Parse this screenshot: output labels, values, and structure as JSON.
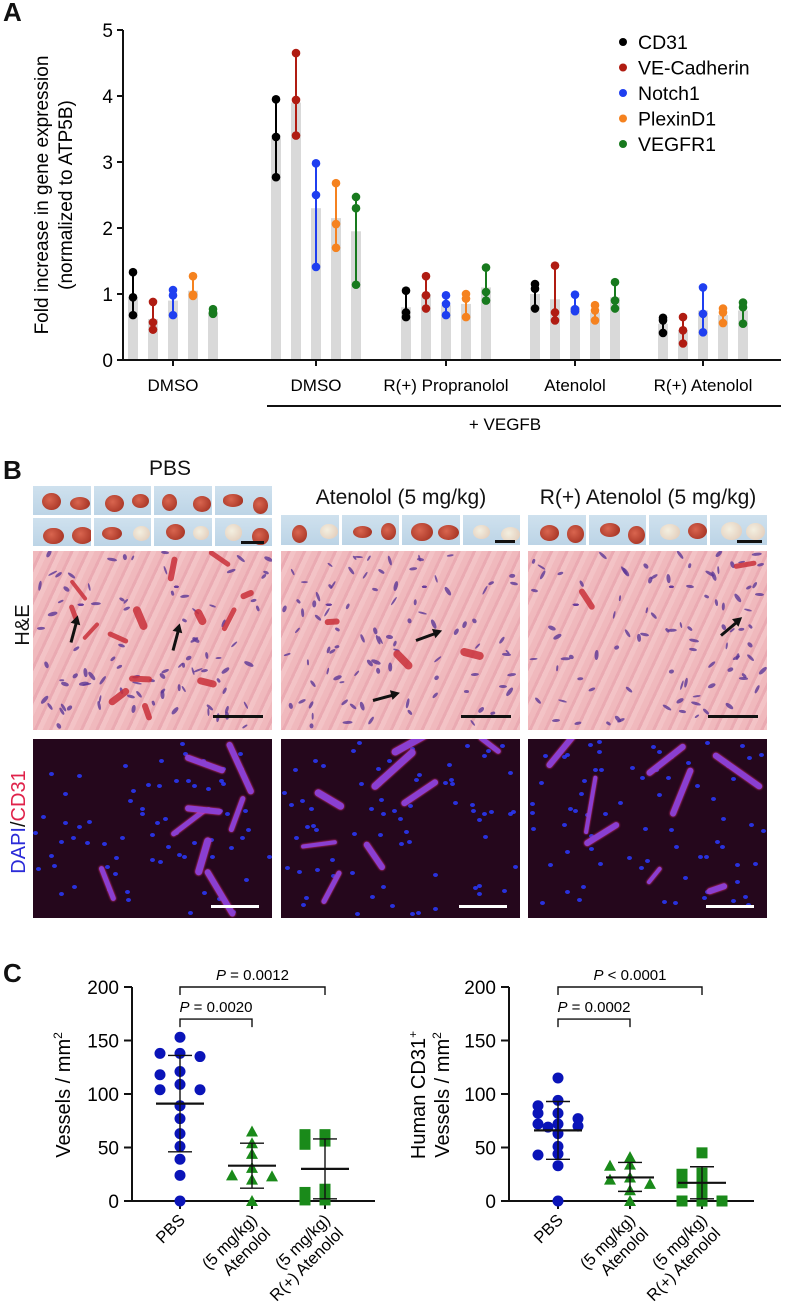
{
  "panels": {
    "A": {
      "letter": "A"
    },
    "B": {
      "letter": "B"
    },
    "C": {
      "letter": "C"
    }
  },
  "panel_b": {
    "groups": [
      {
        "title": "PBS"
      },
      {
        "title": "Atenolol (5 mg/kg)"
      },
      {
        "title": "R(+) Atenolol (5 mg/kg)"
      }
    ],
    "row_labels": {
      "he": "H&E",
      "if_dapi": "DAPI",
      "if_sep": "/",
      "if_cd31": "CD31"
    },
    "colors": {
      "dapi": "#2b2bd8",
      "cd31": "#e0224a"
    }
  },
  "chart_data": [
    {
      "id": "A",
      "type": "bar",
      "title": "",
      "ylabel": "Fold increase in gene expression (normalized to ATP5B)",
      "ylabel_line1": "Fold increase in gene expression",
      "ylabel_line2": "(normalized to ATP5B)",
      "xlabel": "",
      "ylim": [
        0,
        5
      ],
      "yticks": [
        0,
        1,
        2,
        3,
        4,
        5
      ],
      "grid": false,
      "legend_position": "upper right",
      "categories": [
        "DMSO",
        "DMSO",
        "R(+) Propranolol",
        "Atenolol",
        "R(+) Atenolol"
      ],
      "group_annotation": {
        "label": "+ VEGFB",
        "spans_categories": [
          1,
          2,
          3,
          4
        ]
      },
      "bar_color": "#d9d9d9",
      "series": [
        {
          "name": "CD31",
          "color": "#000000",
          "values": [
            0.95,
            3.36,
            0.8,
            1.0,
            0.55
          ],
          "points": [
            [
              1.33,
              0.95,
              0.68
            ],
            [
              3.95,
              3.38,
              2.77
            ],
            [
              1.05,
              0.72,
              0.65
            ],
            [
              1.15,
              1.08,
              0.78
            ],
            [
              0.64,
              0.6,
              0.41
            ]
          ]
        },
        {
          "name": "VE-Cadherin",
          "color": "#b01c12",
          "values": [
            0.62,
            3.9,
            1.0,
            0.92,
            0.45
          ],
          "points": [
            [
              0.88,
              0.57,
              0.46
            ],
            [
              4.65,
              3.94,
              3.4
            ],
            [
              1.27,
              0.98,
              0.78
            ],
            [
              1.43,
              0.72,
              0.6
            ],
            [
              0.65,
              0.45,
              0.25
            ]
          ]
        },
        {
          "name": "Notch1",
          "color": "#1f3ff0",
          "values": [
            0.9,
            2.3,
            0.83,
            0.8,
            0.75
          ],
          "points": [
            [
              1.06,
              0.98,
              0.68
            ],
            [
              2.98,
              2.5,
              1.41
            ],
            [
              0.98,
              0.85,
              0.68
            ],
            [
              0.99,
              0.77,
              0.74
            ],
            [
              1.1,
              0.7,
              0.42
            ]
          ]
        },
        {
          "name": "PlexinD1",
          "color": "#f5821f",
          "values": [
            1.05,
            2.15,
            0.85,
            0.72,
            0.68
          ],
          "points": [
            [
              1.27,
              0.99,
              0.97
            ],
            [
              2.68,
              2.06,
              1.7
            ],
            [
              1.0,
              0.93,
              0.65
            ],
            [
              0.83,
              0.75,
              0.6
            ],
            [
              0.78,
              0.72,
              0.56
            ]
          ]
        },
        {
          "name": "VEGFR1",
          "color": "#187a1e",
          "values": [
            0.72,
            1.95,
            1.1,
            0.95,
            0.75
          ],
          "points": [
            [
              0.77,
              0.72,
              0.7
            ],
            [
              2.47,
              2.3,
              1.14
            ],
            [
              1.4,
              1.03,
              0.9
            ],
            [
              1.18,
              0.9,
              0.78
            ],
            [
              0.87,
              0.8,
              0.55
            ]
          ]
        }
      ]
    },
    {
      "id": "C-left",
      "type": "scatter",
      "title": "",
      "ylabel": "Vessels / mm²",
      "ylabel_text": "Vessels / mm",
      "ylabel_sup": "2",
      "ylim": [
        0,
        200
      ],
      "yticks": [
        0,
        50,
        100,
        150,
        200
      ],
      "categories": [
        "PBS",
        "Atenolol (5 mg/kg)",
        "R(+) Atenolol (5 mg/kg)"
      ],
      "category_lines": [
        [
          "PBS"
        ],
        [
          "Atenolol",
          "(5 mg/kg)"
        ],
        [
          "R(+) Atenolol",
          "(5 mg/kg)"
        ]
      ],
      "series": [
        {
          "name": "PBS",
          "marker": "circle",
          "color": "#0a14b8",
          "points": [
            153,
            138,
            138,
            135,
            121,
            118,
            109,
            104,
            104,
            89,
            77,
            63,
            51,
            39,
            24,
            0
          ],
          "mean": 91,
          "sd_low": 46,
          "sd_high": 136
        },
        {
          "name": "Atenolol (5 mg/kg)",
          "marker": "triangle",
          "color": "#1a8a1a",
          "points": [
            65,
            54,
            44,
            31,
            24,
            23,
            20,
            0
          ],
          "mean": 33,
          "sd_low": 12,
          "sd_high": 54
        },
        {
          "name": "R(+) Atenolol (5 mg/kg)",
          "marker": "square",
          "color": "#1a8a1a",
          "points": [
            62,
            62,
            56,
            53,
            11,
            8,
            1,
            1
          ],
          "mean": 30,
          "sd_low": 2,
          "sd_high": 58
        }
      ],
      "annotations": [
        {
          "text_italic": "P",
          "text": " = 0.0020",
          "from": 0,
          "to": 1,
          "y": 170
        },
        {
          "text_italic": "P",
          "text": " = 0.0012",
          "from": 0,
          "to": 2,
          "y": 200
        }
      ]
    },
    {
      "id": "C-right",
      "type": "scatter",
      "title": "",
      "ylabel": "Human CD31+ Vessels / mm²",
      "ylabel_line1": "Human CD31",
      "ylabel_line1_sup": "+",
      "ylabel_line2": "Vessels / mm",
      "ylabel_line2_sup": "2",
      "ylim": [
        0,
        200
      ],
      "yticks": [
        0,
        50,
        100,
        150,
        200
      ],
      "categories": [
        "PBS",
        "Atenolol (5 mg/kg)",
        "R(+) Atenolol (5 mg/kg)"
      ],
      "category_lines": [
        [
          "PBS"
        ],
        [
          "Atenolol",
          "(5 mg/kg)"
        ],
        [
          "R(+) Atenolol",
          "(5 mg/kg)"
        ]
      ],
      "series": [
        {
          "name": "PBS",
          "marker": "circle",
          "color": "#0a14b8",
          "points": [
            115,
            94,
            89,
            82,
            82,
            77,
            72,
            72,
            70,
            69,
            63,
            51,
            44,
            43,
            33,
            0
          ],
          "mean": 66,
          "sd_low": 39,
          "sd_high": 93
        },
        {
          "name": "Atenolol (5 mg/kg)",
          "marker": "triangle",
          "color": "#1a8a1a",
          "points": [
            41,
            34,
            33,
            22,
            20,
            16,
            10,
            0
          ],
          "mean": 22,
          "sd_low": 9,
          "sd_high": 36
        },
        {
          "name": "R(+) Atenolol (5 mg/kg)",
          "marker": "square",
          "color": "#1a8a1a",
          "points": [
            45,
            26,
            25,
            18,
            17,
            10,
            0,
            0,
            0
          ],
          "mean": 17,
          "sd_low": 2,
          "sd_high": 32
        }
      ],
      "annotations": [
        {
          "text_italic": "P",
          "text": " = 0.0002",
          "from": 0,
          "to": 1,
          "y": 170
        },
        {
          "text_italic": "P",
          "text": " < 0.0001",
          "from": 0,
          "to": 2,
          "y": 200
        }
      ]
    }
  ]
}
